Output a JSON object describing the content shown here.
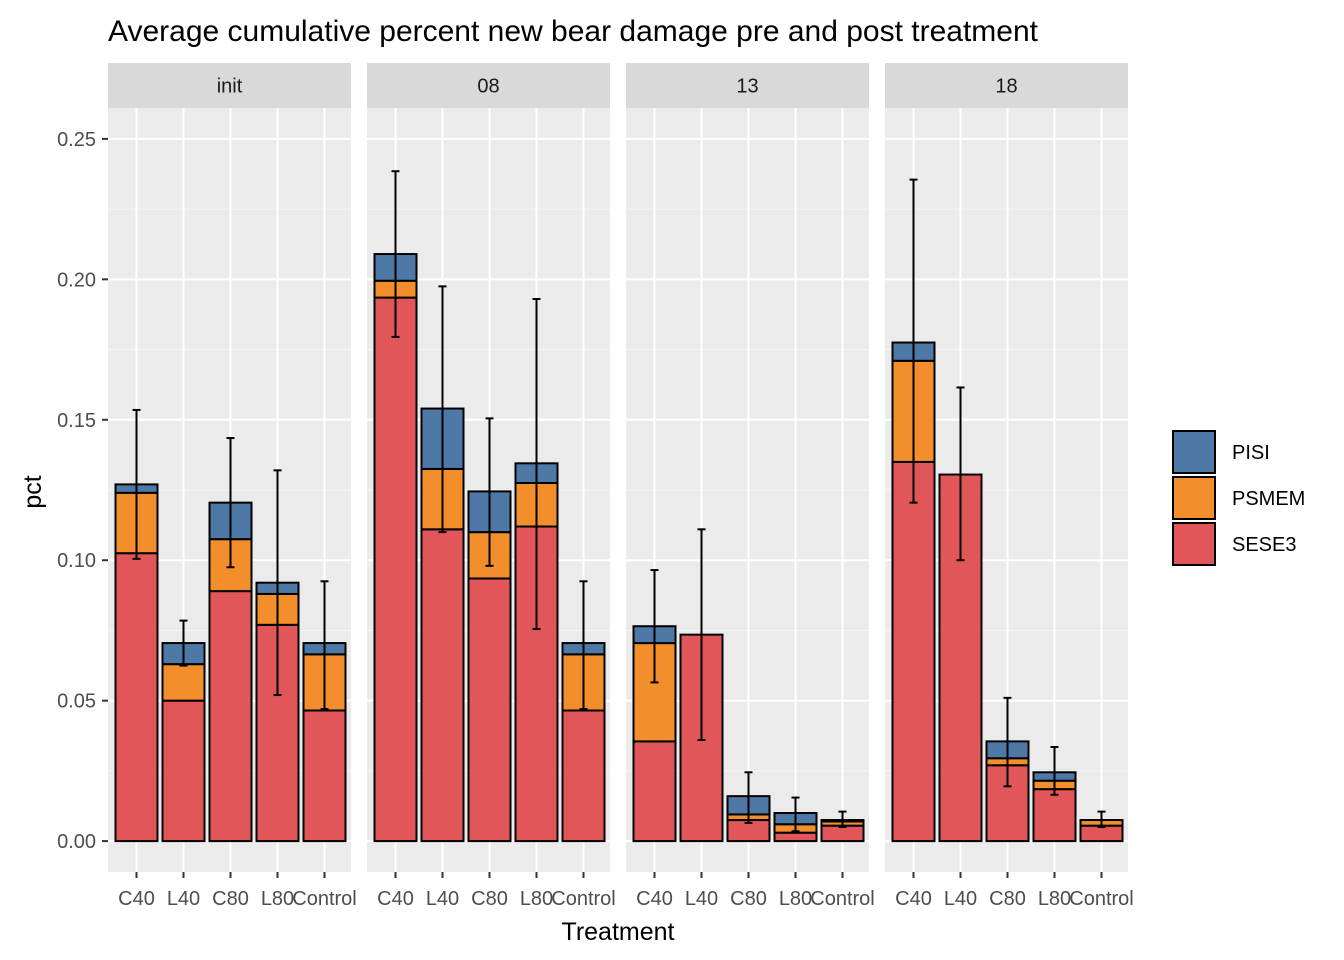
{
  "chart_data": {
    "type": "bar",
    "stacked": true,
    "title": "Average cumulative percent new bear damage pre and post treatment",
    "xlabel": "Treatment",
    "ylabel": "pct",
    "ylim": [
      -0.011,
      0.261
    ],
    "yticks": [
      0.0,
      0.05,
      0.1,
      0.15,
      0.2,
      0.25
    ],
    "ytick_labels": [
      "0.00",
      "0.05",
      "0.10",
      "0.15",
      "0.20",
      "0.25"
    ],
    "categories": [
      "C40",
      "L40",
      "C80",
      "L80",
      "Control"
    ],
    "facets": [
      "init",
      "08",
      "13",
      "18"
    ],
    "legend": {
      "position": "right",
      "entries": [
        {
          "name": "PISI",
          "color": "#4e79a7"
        },
        {
          "name": "PSMEM",
          "color": "#f28e2b"
        },
        {
          "name": "SESE3",
          "color": "#e15759"
        }
      ]
    },
    "stack_order_bottom_to_top": [
      "SESE3",
      "PSMEM",
      "PISI"
    ],
    "panels": [
      {
        "label": "init",
        "series": [
          {
            "name": "SESE3",
            "values": [
              0.1025,
              0.05,
              0.089,
              0.077,
              0.0465
            ]
          },
          {
            "name": "PSMEM",
            "values": [
              0.0215,
              0.013,
              0.0185,
              0.011,
              0.02
            ]
          },
          {
            "name": "PISI",
            "values": [
              0.003,
              0.0075,
              0.013,
              0.004,
              0.004
            ]
          }
        ],
        "error_bars": [
          {
            "low": 0.1005,
            "high": 0.1535
          },
          {
            "low": 0.0625,
            "high": 0.0785
          },
          {
            "low": 0.0975,
            "high": 0.1435
          },
          {
            "low": 0.052,
            "high": 0.132
          },
          {
            "low": 0.047,
            "high": 0.0925
          }
        ]
      },
      {
        "label": "08",
        "series": [
          {
            "name": "SESE3",
            "values": [
              0.1935,
              0.111,
              0.0935,
              0.112,
              0.0465
            ]
          },
          {
            "name": "PSMEM",
            "values": [
              0.006,
              0.0215,
              0.0165,
              0.0155,
              0.02
            ]
          },
          {
            "name": "PISI",
            "values": [
              0.0095,
              0.0215,
              0.0145,
              0.007,
              0.004
            ]
          }
        ],
        "error_bars": [
          {
            "low": 0.1795,
            "high": 0.2385
          },
          {
            "low": 0.11,
            "high": 0.1975
          },
          {
            "low": 0.098,
            "high": 0.1505
          },
          {
            "low": 0.0755,
            "high": 0.193
          },
          {
            "low": 0.047,
            "high": 0.0925
          }
        ]
      },
      {
        "label": "13",
        "series": [
          {
            "name": "SESE3",
            "values": [
              0.0355,
              0.0735,
              0.0075,
              0.003,
              0.0055
            ]
          },
          {
            "name": "PSMEM",
            "values": [
              0.035,
              0.0,
              0.002,
              0.003,
              0.0015
            ]
          },
          {
            "name": "PISI",
            "values": [
              0.006,
              0.0,
              0.0065,
              0.004,
              0.0005
            ]
          }
        ],
        "error_bars": [
          {
            "low": 0.0565,
            "high": 0.0965
          },
          {
            "low": 0.036,
            "high": 0.111
          },
          {
            "low": 0.0065,
            "high": 0.0245
          },
          {
            "low": 0.0035,
            "high": 0.0155
          },
          {
            "low": 0.005,
            "high": 0.0105
          }
        ]
      },
      {
        "label": "18",
        "series": [
          {
            "name": "SESE3",
            "values": [
              0.135,
              0.1305,
              0.027,
              0.0185,
              0.0055
            ]
          },
          {
            "name": "PSMEM",
            "values": [
              0.036,
              0.0,
              0.0025,
              0.003,
              0.002
            ]
          },
          {
            "name": "PISI",
            "values": [
              0.0065,
              0.0,
              0.006,
              0.003,
              0.0
            ]
          }
        ],
        "error_bars": [
          {
            "low": 0.1205,
            "high": 0.2355
          },
          {
            "low": 0.1,
            "high": 0.1615
          },
          {
            "low": 0.0195,
            "high": 0.051
          },
          {
            "low": 0.0165,
            "high": 0.0335
          },
          {
            "low": 0.005,
            "high": 0.0105
          }
        ]
      }
    ],
    "colors": {
      "panel_bg": "#ebebeb",
      "grid_major": "#ffffff",
      "strip_bg": "#d9d9d9",
      "bar_outline": "#000000"
    },
    "grid": true
  }
}
